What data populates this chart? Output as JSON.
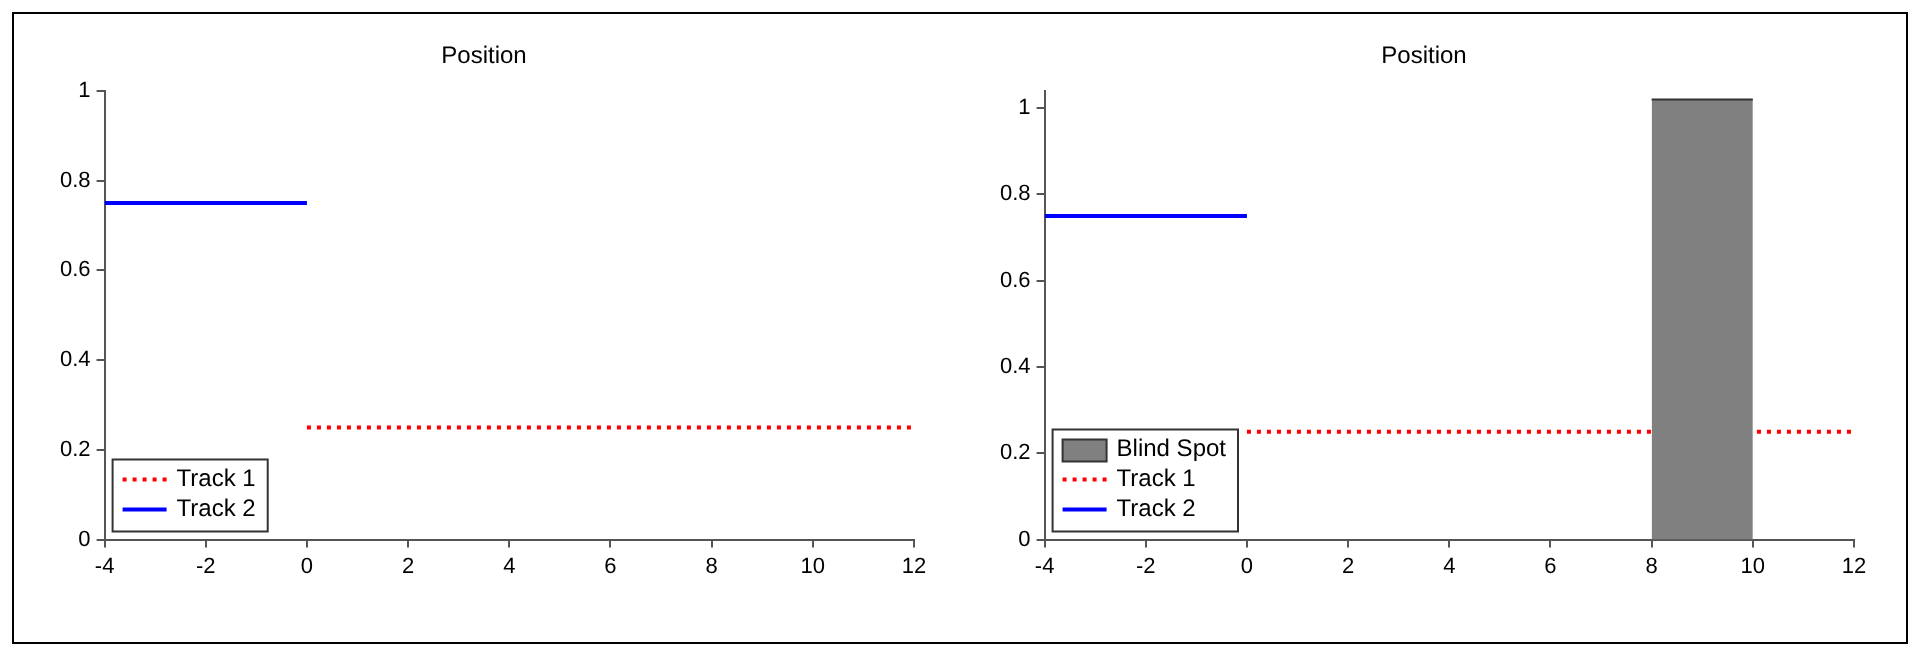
{
  "chart_data": [
    {
      "type": "line",
      "title": "Position",
      "xlim": [
        -4,
        12
      ],
      "xticks": [
        -4,
        -2,
        0,
        2,
        4,
        6,
        8,
        10,
        12
      ],
      "ylim": [
        0,
        1
      ],
      "yticks": [
        0,
        0.2,
        0.4,
        0.6,
        0.8,
        1
      ],
      "grid": false,
      "legend": "bottom left",
      "marker": "none",
      "series": [
        {
          "name": "Track 1",
          "color": "#ff0000",
          "line_style": "dotted",
          "x": [
            0,
            12
          ],
          "values": [
            0.25,
            0.25
          ]
        },
        {
          "name": "Track 2",
          "color": "#0000ff",
          "line_style": "solid",
          "x": [
            -4,
            0
          ],
          "values": [
            0.75,
            0.75
          ]
        }
      ]
    },
    {
      "type": "line",
      "title": "Position",
      "xlim": [
        -4,
        12
      ],
      "xticks": [
        -4,
        -2,
        0,
        2,
        4,
        6,
        8,
        10,
        12
      ],
      "ylim": [
        0,
        1.04
      ],
      "yticks": [
        0,
        0.2,
        0.4,
        0.6,
        0.8,
        1
      ],
      "grid": false,
      "legend": "bottom left",
      "marker": "none",
      "series": [
        {
          "name": "Blind Spot",
          "type": "area",
          "color": "#808080",
          "line_style": "solid",
          "x": [
            8,
            10
          ],
          "values": [
            1.02,
            1.02
          ]
        },
        {
          "name": "Track 1",
          "color": "#ff0000",
          "line_style": "dotted",
          "x": [
            0,
            12
          ],
          "values": [
            0.25,
            0.25
          ]
        },
        {
          "name": "Track 2",
          "color": "#0000ff",
          "line_style": "solid",
          "x": [
            -4,
            0
          ],
          "values": [
            0.75,
            0.75
          ]
        }
      ]
    }
  ]
}
